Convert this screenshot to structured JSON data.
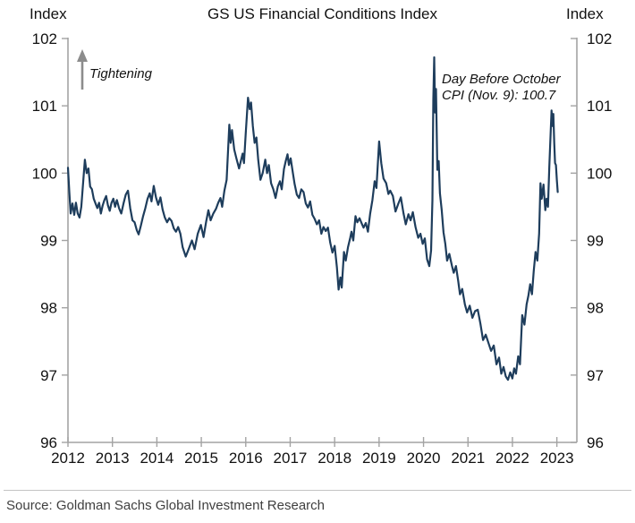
{
  "chart": {
    "title": "GS US Financial Conditions Index",
    "left_axis_title": "Index",
    "right_axis_title": "Index",
    "tightening_label": "Tightening",
    "annotation": {
      "lines": [
        "Day Before October",
        "CPI (Nov. 9): 100.7"
      ]
    }
  },
  "footer": {
    "source": "Source: Goldman Sachs Global Investment Research"
  },
  "chart_data": {
    "type": "line",
    "title": "GS US Financial Conditions Index",
    "ylabel": "Index",
    "xlim": [
      2012,
      2023.45
    ],
    "ylim": [
      96,
      102
    ],
    "x_ticks": [
      2012,
      2013,
      2014,
      2015,
      2016,
      2017,
      2018,
      2019,
      2020,
      2021,
      2022,
      2023
    ],
    "y_ticks": [
      96,
      97,
      98,
      99,
      100,
      101,
      102
    ],
    "grid": false,
    "legend": "none",
    "line_color": "#1e3d5c",
    "axis_color": "#a3a3a3",
    "arrow_color": "#8c8c8c",
    "annotation_point": {
      "x": 2022.9,
      "y": 100.7,
      "label": "Day Before October CPI (Nov. 9): 100.7"
    },
    "series": [
      {
        "name": "GS US Financial Conditions Index",
        "points": [
          [
            2012.0,
            100.08
          ],
          [
            2012.03,
            99.72
          ],
          [
            2012.06,
            99.4
          ],
          [
            2012.1,
            99.55
          ],
          [
            2012.14,
            99.38
          ],
          [
            2012.18,
            99.56
          ],
          [
            2012.22,
            99.4
          ],
          [
            2012.26,
            99.34
          ],
          [
            2012.3,
            99.5
          ],
          [
            2012.34,
            99.85
          ],
          [
            2012.38,
            100.2
          ],
          [
            2012.42,
            100.0
          ],
          [
            2012.46,
            100.07
          ],
          [
            2012.5,
            99.8
          ],
          [
            2012.54,
            99.76
          ],
          [
            2012.58,
            99.62
          ],
          [
            2012.62,
            99.55
          ],
          [
            2012.66,
            99.48
          ],
          [
            2012.7,
            99.56
          ],
          [
            2012.74,
            99.4
          ],
          [
            2012.78,
            99.52
          ],
          [
            2012.82,
            99.6
          ],
          [
            2012.86,
            99.66
          ],
          [
            2012.9,
            99.52
          ],
          [
            2012.94,
            99.44
          ],
          [
            2012.98,
            99.56
          ],
          [
            2013.02,
            99.62
          ],
          [
            2013.06,
            99.5
          ],
          [
            2013.1,
            99.6
          ],
          [
            2013.15,
            99.48
          ],
          [
            2013.2,
            99.4
          ],
          [
            2013.25,
            99.55
          ],
          [
            2013.3,
            99.68
          ],
          [
            2013.35,
            99.74
          ],
          [
            2013.4,
            99.48
          ],
          [
            2013.45,
            99.3
          ],
          [
            2013.5,
            99.27
          ],
          [
            2013.55,
            99.15
          ],
          [
            2013.59,
            99.09
          ],
          [
            2013.64,
            99.22
          ],
          [
            2013.69,
            99.36
          ],
          [
            2013.74,
            99.48
          ],
          [
            2013.79,
            99.62
          ],
          [
            2013.84,
            99.7
          ],
          [
            2013.88,
            99.58
          ],
          [
            2013.93,
            99.81
          ],
          [
            2013.98,
            99.64
          ],
          [
            2014.03,
            99.53
          ],
          [
            2014.08,
            99.64
          ],
          [
            2014.13,
            99.46
          ],
          [
            2014.18,
            99.34
          ],
          [
            2014.23,
            99.27
          ],
          [
            2014.28,
            99.33
          ],
          [
            2014.33,
            99.29
          ],
          [
            2014.38,
            99.18
          ],
          [
            2014.43,
            99.13
          ],
          [
            2014.48,
            99.2
          ],
          [
            2014.53,
            99.1
          ],
          [
            2014.58,
            98.9
          ],
          [
            2014.65,
            98.76
          ],
          [
            2014.72,
            98.88
          ],
          [
            2014.79,
            99.0
          ],
          [
            2014.85,
            98.87
          ],
          [
            2014.92,
            99.1
          ],
          [
            2014.99,
            99.23
          ],
          [
            2015.05,
            99.05
          ],
          [
            2015.11,
            99.28
          ],
          [
            2015.16,
            99.45
          ],
          [
            2015.21,
            99.3
          ],
          [
            2015.27,
            99.4
          ],
          [
            2015.33,
            99.47
          ],
          [
            2015.38,
            99.56
          ],
          [
            2015.43,
            99.63
          ],
          [
            2015.47,
            99.5
          ],
          [
            2015.52,
            99.74
          ],
          [
            2015.57,
            99.9
          ],
          [
            2015.63,
            100.72
          ],
          [
            2015.66,
            100.45
          ],
          [
            2015.69,
            100.64
          ],
          [
            2015.74,
            100.35
          ],
          [
            2015.79,
            100.22
          ],
          [
            2015.85,
            100.07
          ],
          [
            2015.89,
            100.18
          ],
          [
            2015.93,
            100.29
          ],
          [
            2015.96,
            100.15
          ],
          [
            2016.0,
            100.6
          ],
          [
            2016.05,
            101.12
          ],
          [
            2016.09,
            100.95
          ],
          [
            2016.12,
            101.05
          ],
          [
            2016.16,
            100.7
          ],
          [
            2016.2,
            100.45
          ],
          [
            2016.24,
            100.53
          ],
          [
            2016.28,
            100.2
          ],
          [
            2016.33,
            99.9
          ],
          [
            2016.38,
            100.0
          ],
          [
            2016.44,
            100.2
          ],
          [
            2016.48,
            100.0
          ],
          [
            2016.52,
            100.12
          ],
          [
            2016.57,
            99.85
          ],
          [
            2016.62,
            99.76
          ],
          [
            2016.67,
            99.63
          ],
          [
            2016.72,
            99.8
          ],
          [
            2016.77,
            99.88
          ],
          [
            2016.81,
            99.76
          ],
          [
            2016.86,
            100.06
          ],
          [
            2016.9,
            100.18
          ],
          [
            2016.94,
            100.28
          ],
          [
            2016.97,
            100.12
          ],
          [
            2017.01,
            100.22
          ],
          [
            2017.06,
            100.0
          ],
          [
            2017.1,
            99.84
          ],
          [
            2017.15,
            99.68
          ],
          [
            2017.2,
            99.63
          ],
          [
            2017.25,
            99.76
          ],
          [
            2017.3,
            99.72
          ],
          [
            2017.35,
            99.55
          ],
          [
            2017.4,
            99.49
          ],
          [
            2017.45,
            99.58
          ],
          [
            2017.5,
            99.38
          ],
          [
            2017.55,
            99.32
          ],
          [
            2017.6,
            99.24
          ],
          [
            2017.65,
            99.3
          ],
          [
            2017.7,
            99.1
          ],
          [
            2017.75,
            99.2
          ],
          [
            2017.8,
            99.14
          ],
          [
            2017.85,
            99.19
          ],
          [
            2017.9,
            98.97
          ],
          [
            2017.95,
            98.82
          ],
          [
            2018.0,
            98.92
          ],
          [
            2018.05,
            98.6
          ],
          [
            2018.09,
            98.27
          ],
          [
            2018.13,
            98.45
          ],
          [
            2018.16,
            98.3
          ],
          [
            2018.21,
            98.83
          ],
          [
            2018.25,
            98.7
          ],
          [
            2018.3,
            98.9
          ],
          [
            2018.35,
            99.04
          ],
          [
            2018.38,
            99.13
          ],
          [
            2018.42,
            99.0
          ],
          [
            2018.47,
            99.36
          ],
          [
            2018.51,
            99.27
          ],
          [
            2018.56,
            99.33
          ],
          [
            2018.61,
            99.25
          ],
          [
            2018.65,
            99.19
          ],
          [
            2018.7,
            99.26
          ],
          [
            2018.75,
            99.13
          ],
          [
            2018.8,
            99.4
          ],
          [
            2018.85,
            99.6
          ],
          [
            2018.9,
            99.88
          ],
          [
            2018.94,
            99.78
          ],
          [
            2019.0,
            100.47
          ],
          [
            2019.05,
            100.15
          ],
          [
            2019.1,
            99.92
          ],
          [
            2019.16,
            99.85
          ],
          [
            2019.21,
            99.69
          ],
          [
            2019.25,
            99.74
          ],
          [
            2019.31,
            99.66
          ],
          [
            2019.37,
            99.43
          ],
          [
            2019.43,
            99.54
          ],
          [
            2019.49,
            99.64
          ],
          [
            2019.55,
            99.4
          ],
          [
            2019.6,
            99.24
          ],
          [
            2019.66,
            99.39
          ],
          [
            2019.71,
            99.3
          ],
          [
            2019.76,
            99.42
          ],
          [
            2019.82,
            99.2
          ],
          [
            2019.88,
            99.04
          ],
          [
            2019.93,
            99.1
          ],
          [
            2019.98,
            98.95
          ],
          [
            2020.03,
            99.03
          ],
          [
            2020.08,
            98.72
          ],
          [
            2020.13,
            98.62
          ],
          [
            2020.17,
            98.85
          ],
          [
            2020.2,
            99.6
          ],
          [
            2020.22,
            101.1
          ],
          [
            2020.24,
            101.72
          ],
          [
            2020.26,
            100.9
          ],
          [
            2020.28,
            101.25
          ],
          [
            2020.31,
            100.05
          ],
          [
            2020.34,
            100.18
          ],
          [
            2020.37,
            99.7
          ],
          [
            2020.41,
            99.45
          ],
          [
            2020.45,
            99.12
          ],
          [
            2020.49,
            98.95
          ],
          [
            2020.53,
            98.7
          ],
          [
            2020.58,
            98.8
          ],
          [
            2020.64,
            98.62
          ],
          [
            2020.68,
            98.52
          ],
          [
            2020.73,
            98.62
          ],
          [
            2020.78,
            98.4
          ],
          [
            2020.82,
            98.2
          ],
          [
            2020.87,
            98.28
          ],
          [
            2020.93,
            98.05
          ],
          [
            2020.98,
            97.93
          ],
          [
            2021.04,
            98.03
          ],
          [
            2021.1,
            97.85
          ],
          [
            2021.16,
            97.95
          ],
          [
            2021.22,
            97.97
          ],
          [
            2021.28,
            97.76
          ],
          [
            2021.34,
            97.52
          ],
          [
            2021.4,
            97.6
          ],
          [
            2021.46,
            97.48
          ],
          [
            2021.52,
            97.36
          ],
          [
            2021.58,
            97.44
          ],
          [
            2021.64,
            97.16
          ],
          [
            2021.7,
            97.26
          ],
          [
            2021.75,
            97.02
          ],
          [
            2021.8,
            97.12
          ],
          [
            2021.85,
            96.98
          ],
          [
            2021.9,
            96.93
          ],
          [
            2021.95,
            97.04
          ],
          [
            2022.0,
            96.95
          ],
          [
            2022.04,
            97.1
          ],
          [
            2022.08,
            97.02
          ],
          [
            2022.13,
            97.28
          ],
          [
            2022.17,
            97.16
          ],
          [
            2022.22,
            97.89
          ],
          [
            2022.27,
            97.75
          ],
          [
            2022.32,
            98.05
          ],
          [
            2022.36,
            98.18
          ],
          [
            2022.4,
            98.35
          ],
          [
            2022.44,
            98.2
          ],
          [
            2022.48,
            98.55
          ],
          [
            2022.52,
            98.83
          ],
          [
            2022.56,
            98.7
          ],
          [
            2022.6,
            99.1
          ],
          [
            2022.63,
            99.85
          ],
          [
            2022.66,
            99.62
          ],
          [
            2022.7,
            99.83
          ],
          [
            2022.74,
            99.45
          ],
          [
            2022.77,
            99.62
          ],
          [
            2022.8,
            99.5
          ],
          [
            2022.83,
            100.1
          ],
          [
            2022.86,
            100.6
          ],
          [
            2022.88,
            100.93
          ],
          [
            2022.9,
            100.7
          ],
          [
            2022.92,
            100.88
          ],
          [
            2022.94,
            100.45
          ],
          [
            2022.96,
            100.15
          ],
          [
            2022.98,
            100.12
          ],
          [
            2023.0,
            99.9
          ],
          [
            2023.02,
            99.72
          ]
        ]
      }
    ]
  }
}
